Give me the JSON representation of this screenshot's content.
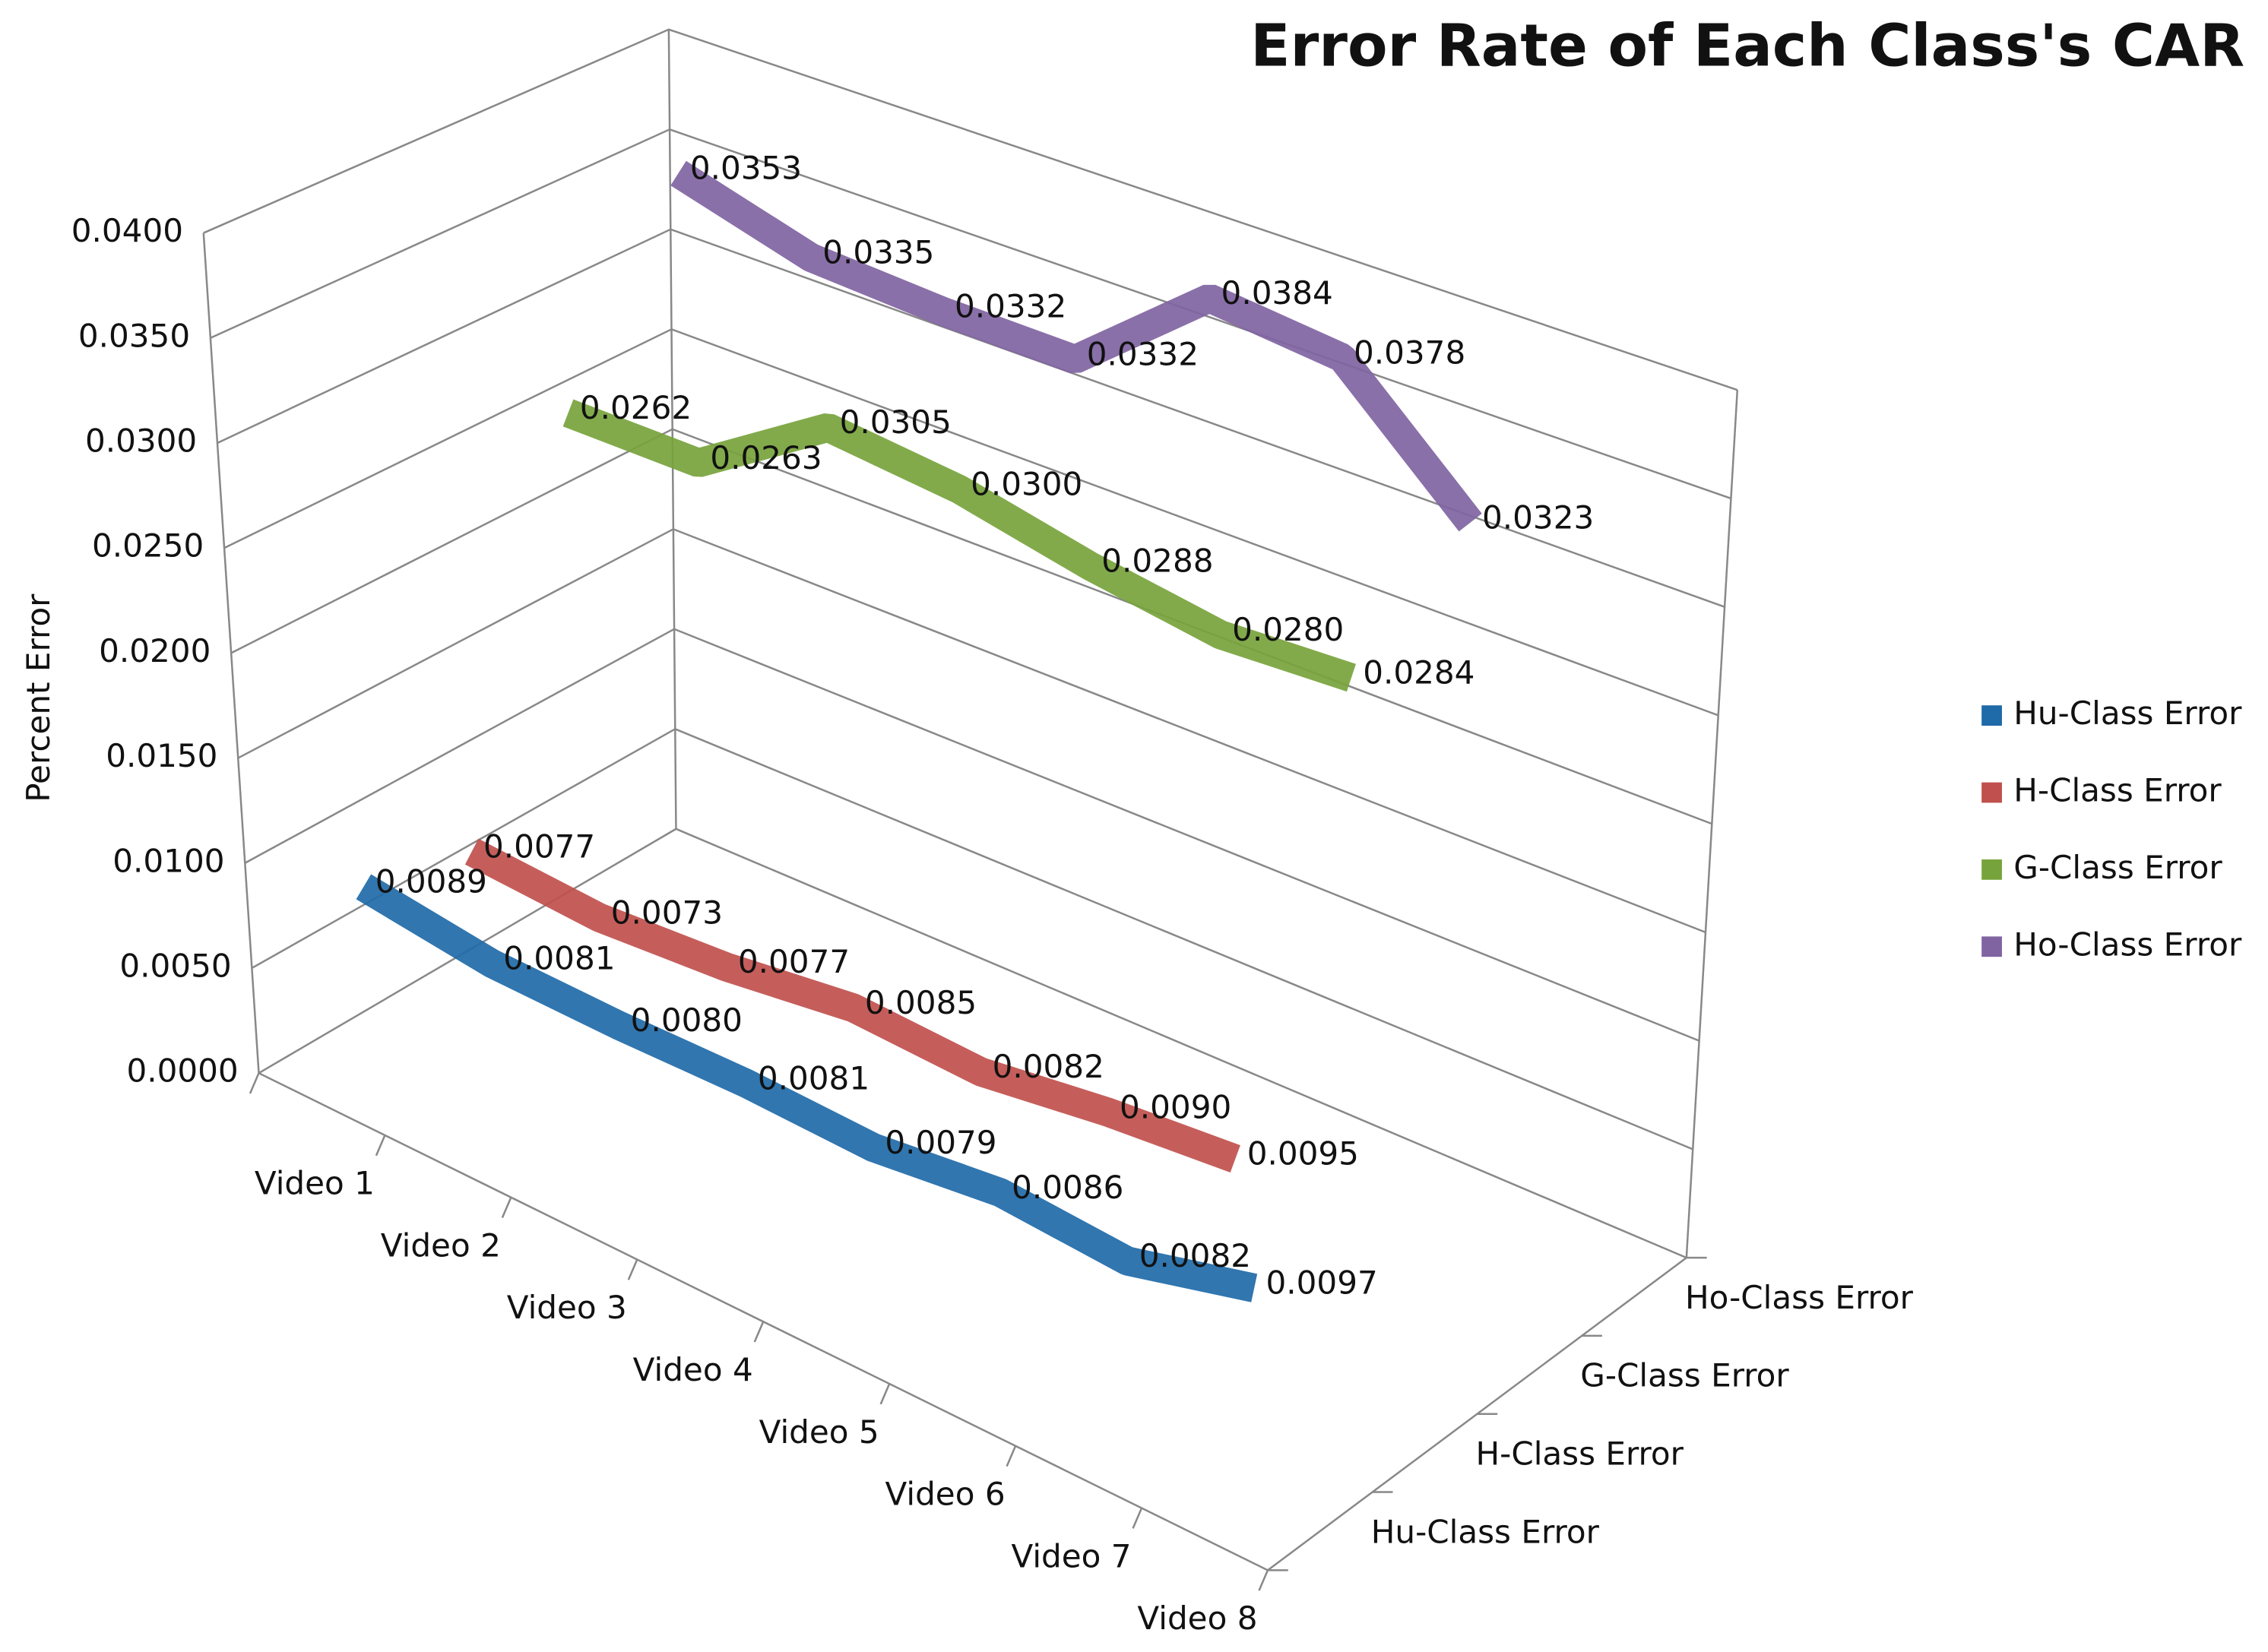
{
  "chart_data": {
    "type": "line3d",
    "title": "Error Rate of Each Class's CAR",
    "y_label": "Percent Error",
    "categories": [
      "Video 1",
      "Video 2",
      "Video 3",
      "Video 4",
      "Video 5",
      "Video 6",
      "Video 7",
      "Video 8"
    ],
    "series": [
      {
        "name": "Hu-Class Error",
        "color": "#1f6aa8",
        "values": [
          0.0089,
          0.0081,
          0.008,
          0.0081,
          0.0079,
          0.0086,
          0.0082,
          0.0097
        ],
        "value_labels": [
          "0.0089",
          "0.0081",
          "0.0080",
          "0.0081",
          "0.0079",
          "0.0086",
          "0.0082",
          "0.0097"
        ]
      },
      {
        "name": "H-Class Error",
        "color": "#c0504d",
        "values": [
          0.0077,
          0.0073,
          0.0077,
          0.0085,
          0.0082,
          0.009,
          0.0095,
          null
        ],
        "value_labels": [
          "0.0077",
          "0.0073",
          "0.0077",
          "0.0085",
          "0.0082",
          "0.0090",
          "0.0095",
          null
        ]
      },
      {
        "name": "G-Class Error",
        "color": "#77a33c",
        "values": [
          0.0262,
          0.0263,
          0.0305,
          0.03,
          0.0288,
          0.028,
          0.0284,
          null
        ],
        "value_labels": [
          "0.0262",
          "0.0263",
          "0.0305",
          "0.0300",
          "0.0288",
          "0.0280",
          "0.0284",
          null
        ]
      },
      {
        "name": "Ho-Class Error",
        "color": "#8064a2",
        "values": [
          0.0353,
          0.0335,
          0.0332,
          0.0332,
          0.0384,
          0.0378,
          0.0323,
          null
        ],
        "value_labels": [
          "0.0353",
          "0.0335",
          "0.0332",
          "0.0332",
          "0.0384",
          "0.0378",
          "0.0323",
          null
        ]
      }
    ],
    "ylim": [
      0,
      0.04
    ],
    "yticks": [
      {
        "value": 0,
        "label": "0.0000"
      },
      {
        "value": 0.005,
        "label": "0.0050"
      },
      {
        "value": 0.01,
        "label": "0.0100"
      },
      {
        "value": 0.015,
        "label": "0.0150"
      },
      {
        "value": 0.02,
        "label": "0.0200"
      },
      {
        "value": 0.025,
        "label": "0.0250"
      },
      {
        "value": 0.03,
        "label": "0.0300"
      },
      {
        "value": 0.035,
        "label": "0.0350"
      },
      {
        "value": 0.04,
        "label": "0.0400"
      }
    ],
    "grid": true,
    "legend": "right"
  }
}
